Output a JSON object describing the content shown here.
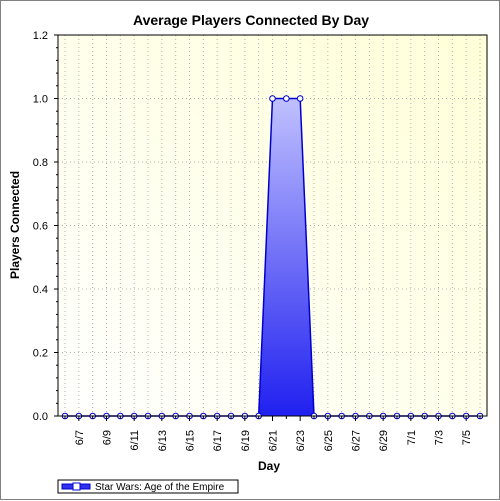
{
  "chart_data": {
    "type": "area",
    "title": "Average Players Connected By Day",
    "xlabel": "Day",
    "ylabel": "Players Connected",
    "ylim": [
      0,
      1.2
    ],
    "yticks": [
      "0.0",
      "0.2",
      "0.4",
      "0.6",
      "0.8",
      "1.0",
      "1.2"
    ],
    "x": [
      "6/6",
      "6/7",
      "6/8",
      "6/9",
      "6/10",
      "6/11",
      "6/12",
      "6/13",
      "6/14",
      "6/15",
      "6/16",
      "6/17",
      "6/18",
      "6/19",
      "6/20",
      "6/21",
      "6/22",
      "6/23",
      "6/24",
      "6/25",
      "6/26",
      "6/27",
      "6/28",
      "6/29",
      "6/30",
      "7/1",
      "7/2",
      "7/3",
      "7/4",
      "7/5",
      "7/6"
    ],
    "xtick_labels": [
      "6/7",
      "6/9",
      "6/11",
      "6/13",
      "6/15",
      "6/17",
      "6/19",
      "6/21",
      "6/23",
      "6/25",
      "6/27",
      "6/29",
      "7/1",
      "7/3",
      "7/5"
    ],
    "series": [
      {
        "name": "Star Wars: Age of the Empire",
        "values": [
          0,
          0,
          0,
          0,
          0,
          0,
          0,
          0,
          0,
          0,
          0,
          0,
          0,
          0,
          0,
          1,
          1,
          1,
          0,
          0,
          0,
          0,
          0,
          0,
          0,
          0,
          0,
          0,
          0,
          0,
          0
        ]
      }
    ],
    "grid": true,
    "legend_position": "bottom-left",
    "colors": {
      "series_fill_top": "#c0c0ff",
      "series_fill_bottom": "#2020f0",
      "series_line": "#0000cc",
      "plot_bg_light": "#ffffff",
      "plot_bg_dark": "#ffffd8"
    }
  }
}
